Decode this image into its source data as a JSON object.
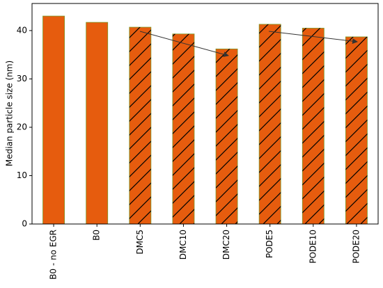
{
  "chart_data": {
    "type": "bar",
    "ylabel": "Median particle size (nm)",
    "categories": [
      "B0 - no EGR",
      "B0",
      "DMC5",
      "DMC10",
      "DMC20",
      "PODE5",
      "PODE10",
      "PODE20"
    ],
    "values": [
      43,
      41.7,
      40.7,
      39.3,
      36.2,
      41.3,
      40.5,
      38.7
    ],
    "hatched": [
      false,
      false,
      true,
      true,
      true,
      true,
      true,
      true
    ],
    "color": "#e65c0e",
    "ylim": [
      0,
      45.6
    ],
    "yticks": [
      0,
      10,
      20,
      30,
      40
    ],
    "grid": false
  }
}
